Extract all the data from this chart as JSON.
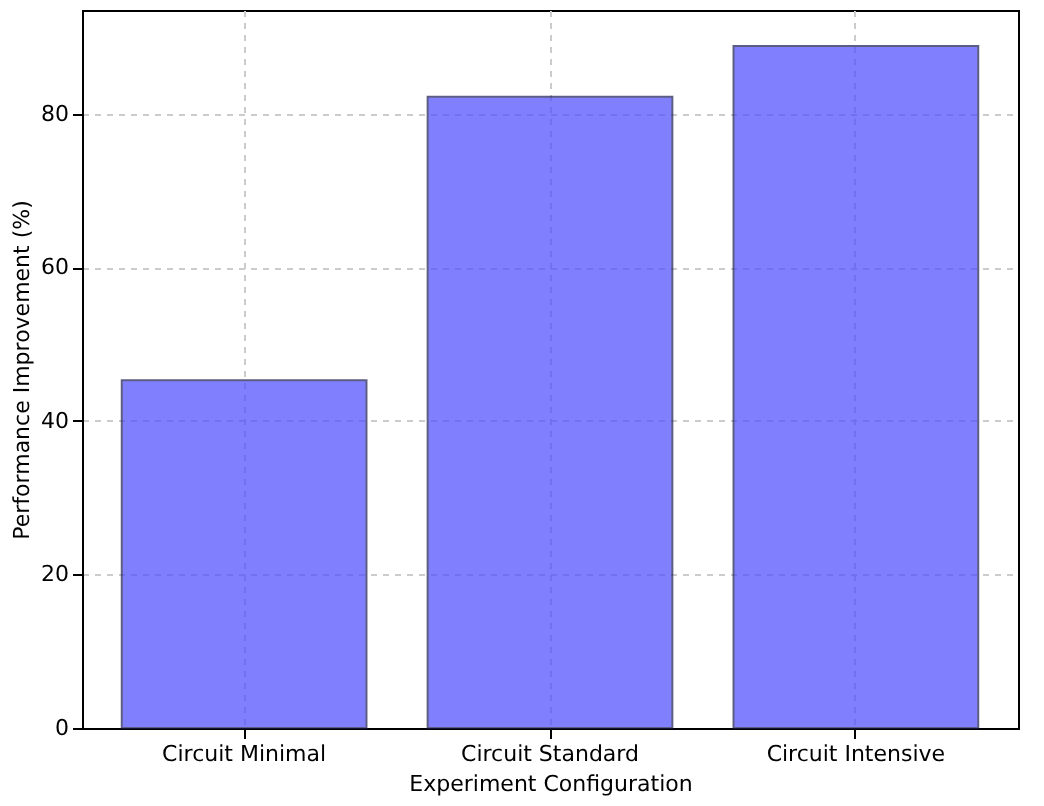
{
  "chart_data": {
    "type": "bar",
    "xlabel": "Experiment Configuration",
    "ylabel": "Performance Improvement (%)",
    "categories": [
      "Circuit Minimal",
      "Circuit Standard",
      "Circuit Intensive"
    ],
    "series": [
      {
        "color": "#4b4bff",
        "values": [
          45.3,
          82.2,
          88.8
        ]
      }
    ],
    "ylim": [
      0,
      93.5
    ],
    "yticks": [
      0,
      20,
      40,
      60,
      80
    ],
    "grid": true
  }
}
